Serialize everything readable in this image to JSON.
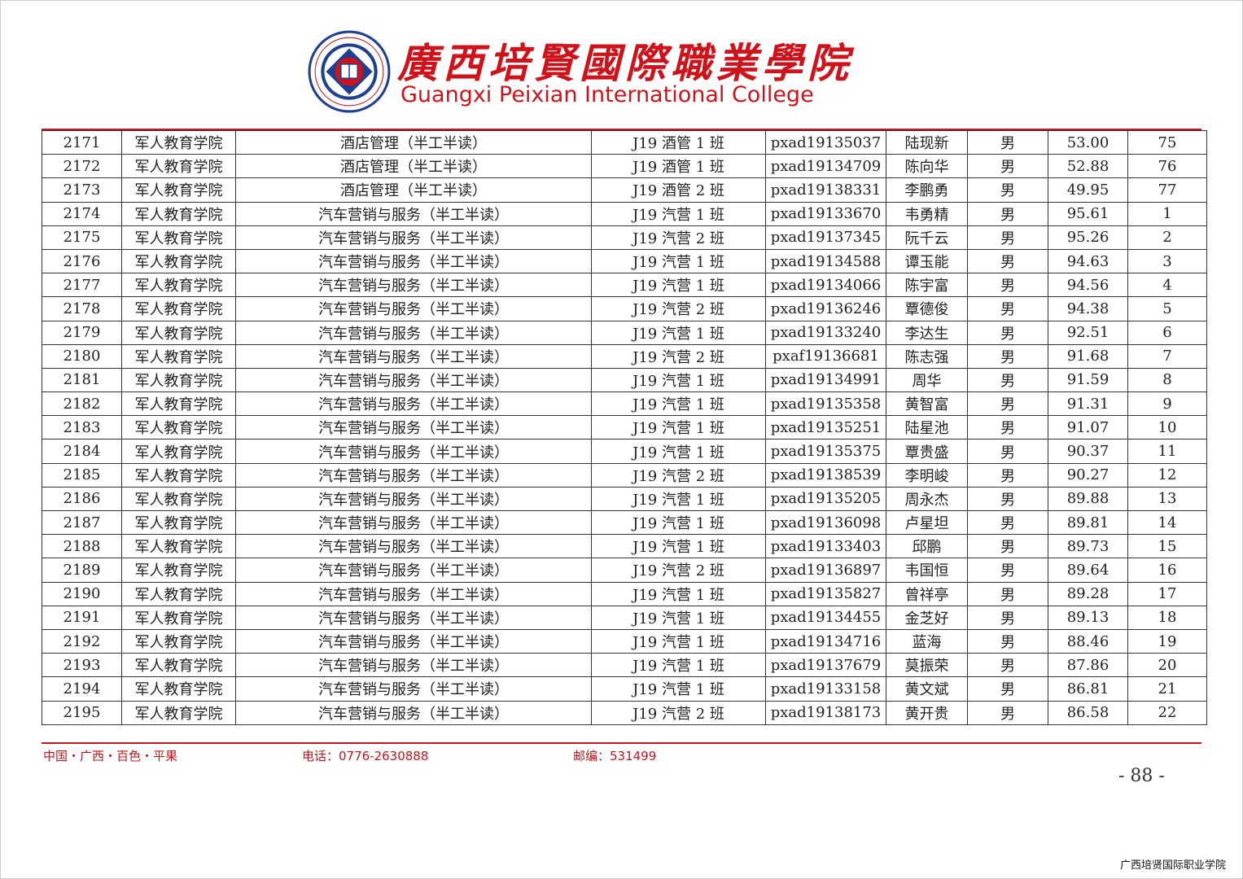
{
  "header": {
    "title_cn": "廣西培賢國際職業學院",
    "title_en": "Guangxi Peixian International College",
    "logo_text": "广西培贤国际职业学院 GUANGXI PEIXIAN INTERNATIONAL COLLEGE"
  },
  "table": {
    "rows": [
      [
        "2171",
        "军人教育学院",
        "酒店管理（半工半读）",
        "J19 酒管 1 班",
        "pxad19135037",
        "陆现新",
        "男",
        "53.00",
        "75"
      ],
      [
        "2172",
        "军人教育学院",
        "酒店管理（半工半读）",
        "J19 酒管 1 班",
        "pxad19134709",
        "陈向华",
        "男",
        "52.88",
        "76"
      ],
      [
        "2173",
        "军人教育学院",
        "酒店管理（半工半读）",
        "J19 酒管 2 班",
        "pxad19138331",
        "李鹏勇",
        "男",
        "49.95",
        "77"
      ],
      [
        "2174",
        "军人教育学院",
        "汽车营销与服务（半工半读）",
        "J19 汽营 1 班",
        "pxad19133670",
        "韦勇精",
        "男",
        "95.61",
        "1"
      ],
      [
        "2175",
        "军人教育学院",
        "汽车营销与服务（半工半读）",
        "J19 汽营 2 班",
        "pxad19137345",
        "阮千云",
        "男",
        "95.26",
        "2"
      ],
      [
        "2176",
        "军人教育学院",
        "汽车营销与服务（半工半读）",
        "J19 汽营 1 班",
        "pxad19134588",
        "谭玉能",
        "男",
        "94.63",
        "3"
      ],
      [
        "2177",
        "军人教育学院",
        "汽车营销与服务（半工半读）",
        "J19 汽营 1 班",
        "pxad19134066",
        "陈宇富",
        "男",
        "94.56",
        "4"
      ],
      [
        "2178",
        "军人教育学院",
        "汽车营销与服务（半工半读）",
        "J19 汽营 2 班",
        "pxad19136246",
        "覃德俊",
        "男",
        "94.38",
        "5"
      ],
      [
        "2179",
        "军人教育学院",
        "汽车营销与服务（半工半读）",
        "J19 汽营 1 班",
        "pxad19133240",
        "李达生",
        "男",
        "92.51",
        "6"
      ],
      [
        "2180",
        "军人教育学院",
        "汽车营销与服务（半工半读）",
        "J19 汽营 2 班",
        "pxaf19136681",
        "陈志强",
        "男",
        "91.68",
        "7"
      ],
      [
        "2181",
        "军人教育学院",
        "汽车营销与服务（半工半读）",
        "J19 汽营 1 班",
        "pxad19134991",
        "周华",
        "男",
        "91.59",
        "8"
      ],
      [
        "2182",
        "军人教育学院",
        "汽车营销与服务（半工半读）",
        "J19 汽营 1 班",
        "pxad19135358",
        "黄智富",
        "男",
        "91.31",
        "9"
      ],
      [
        "2183",
        "军人教育学院",
        "汽车营销与服务（半工半读）",
        "J19 汽营 1 班",
        "pxad19135251",
        "陆星池",
        "男",
        "91.07",
        "10"
      ],
      [
        "2184",
        "军人教育学院",
        "汽车营销与服务（半工半读）",
        "J19 汽营 1 班",
        "pxad19135375",
        "覃贵盛",
        "男",
        "90.37",
        "11"
      ],
      [
        "2185",
        "军人教育学院",
        "汽车营销与服务（半工半读）",
        "J19 汽营 2 班",
        "pxad19138539",
        "李明峻",
        "男",
        "90.27",
        "12"
      ],
      [
        "2186",
        "军人教育学院",
        "汽车营销与服务（半工半读）",
        "J19 汽营 1 班",
        "pxad19135205",
        "周永杰",
        "男",
        "89.88",
        "13"
      ],
      [
        "2187",
        "军人教育学院",
        "汽车营销与服务（半工半读）",
        "J19 汽营 1 班",
        "pxad19136098",
        "卢星坦",
        "男",
        "89.81",
        "14"
      ],
      [
        "2188",
        "军人教育学院",
        "汽车营销与服务（半工半读）",
        "J19 汽营 1 班",
        "pxad19133403",
        "邱鹏",
        "男",
        "89.73",
        "15"
      ],
      [
        "2189",
        "军人教育学院",
        "汽车营销与服务（半工半读）",
        "J19 汽营 2 班",
        "pxad19136897",
        "韦国恒",
        "男",
        "89.64",
        "16"
      ],
      [
        "2190",
        "军人教育学院",
        "汽车营销与服务（半工半读）",
        "J19 汽营 1 班",
        "pxad19135827",
        "曾祥亭",
        "男",
        "89.28",
        "17"
      ],
      [
        "2191",
        "军人教育学院",
        "汽车营销与服务（半工半读）",
        "J19 汽营 1 班",
        "pxad19134455",
        "金芝好",
        "男",
        "89.13",
        "18"
      ],
      [
        "2192",
        "军人教育学院",
        "汽车营销与服务（半工半读）",
        "J19 汽营 1 班",
        "pxad19134716",
        "蓝海",
        "男",
        "88.46",
        "19"
      ],
      [
        "2193",
        "军人教育学院",
        "汽车营销与服务（半工半读）",
        "J19 汽营 1 班",
        "pxad19137679",
        "莫振荣",
        "男",
        "87.86",
        "20"
      ],
      [
        "2194",
        "军人教育学院",
        "汽车营销与服务（半工半读）",
        "J19 汽营 1 班",
        "pxad19133158",
        "黄文斌",
        "男",
        "86.81",
        "21"
      ],
      [
        "2195",
        "军人教育学院",
        "汽车营销与服务（半工半读）",
        "J19 汽营 2 班",
        "pxad19138173",
        "黄开贵",
        "男",
        "86.58",
        "22"
      ]
    ]
  },
  "footer": {
    "address": "中国・广西・百色・平果",
    "phone": "电话：0776-2630888",
    "postcode": "邮编：531499",
    "page_number": "- 88 -",
    "watermark": "广西培贤国际职业学院"
  },
  "colors": {
    "brand_red": "#d0121b",
    "logo_blue": "#1f3f8f"
  }
}
